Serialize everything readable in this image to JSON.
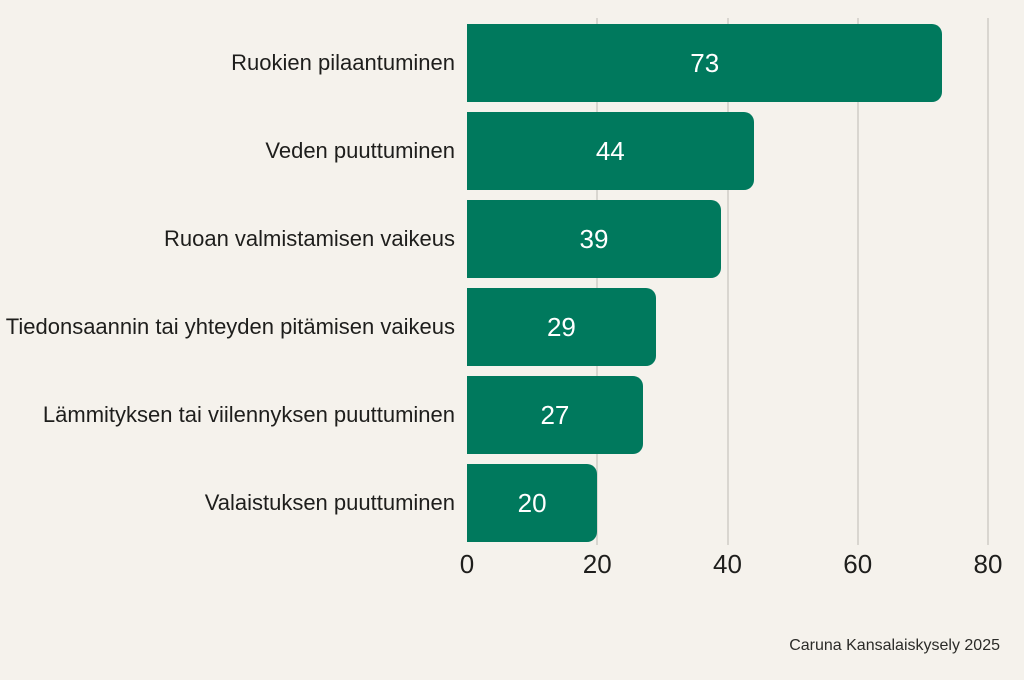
{
  "chart_data": {
    "type": "bar",
    "orientation": "horizontal",
    "title": "",
    "xlabel": "",
    "ylabel": "",
    "categories": [
      "Ruokien pilaantuminen",
      "Veden puuttuminen",
      "Ruoan valmistamisen vaikeus",
      "Tiedonsaannin tai yhteyden pitämisen vaikeus",
      "Lämmityksen tai viilennyksen puuttuminen",
      "Valaistuksen puuttuminen"
    ],
    "values": [
      73,
      44,
      39,
      29,
      27,
      20
    ],
    "xlim": [
      0,
      80
    ],
    "x_ticks": [
      0,
      20,
      40,
      60,
      80
    ],
    "grid": true,
    "legend": false,
    "value_labels_position": "inside-center",
    "caption": "Caruna Kansalaiskysely 2025",
    "colors": {
      "bar": "#00795d",
      "background": "#f5f2ec",
      "gridline": "#d9d6d0",
      "text": "#1e1e1c",
      "value_text": "#ffffff"
    }
  }
}
